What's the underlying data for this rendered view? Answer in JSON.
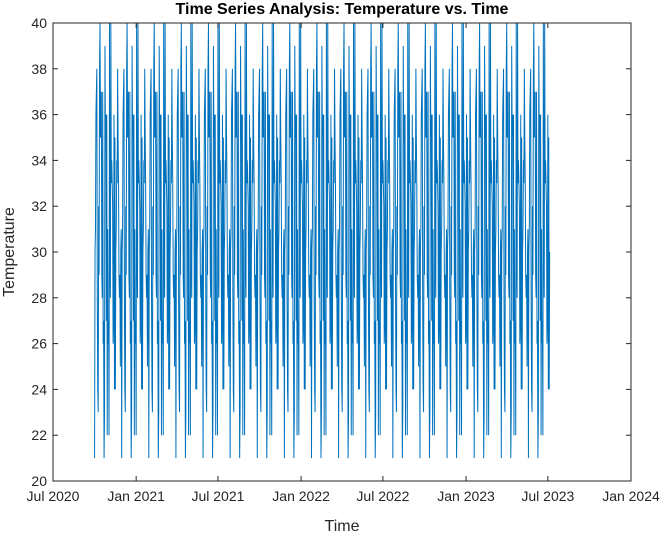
{
  "chart_data": {
    "type": "line",
    "title": "Time Series Analysis: Temperature vs. Time",
    "xlabel": "Time",
    "ylabel": "Temperature",
    "xlim": [
      "2020-07-01",
      "2024-01-01"
    ],
    "ylim": [
      20,
      40
    ],
    "x_ticks": [
      {
        "date": "2020-07-01",
        "label": "Jul 2020"
      },
      {
        "date": "2021-01-01",
        "label": "Jan 2021"
      },
      {
        "date": "2021-07-01",
        "label": "Jul 2021"
      },
      {
        "date": "2022-01-01",
        "label": "Jan 2022"
      },
      {
        "date": "2022-07-01",
        "label": "Jul 2022"
      },
      {
        "date": "2023-01-01",
        "label": "Jan 2023"
      },
      {
        "date": "2023-07-01",
        "label": "Jul 2023"
      },
      {
        "date": "2024-01-01",
        "label": "Jan 2024"
      }
    ],
    "y_ticks": [
      20,
      22,
      24,
      26,
      28,
      30,
      32,
      34,
      36,
      38,
      40
    ],
    "grid": false,
    "series": [
      {
        "start_date": "2020-10-01",
        "end_date": "2023-07-05",
        "frequency": "daily",
        "line_color": "#0072BD",
        "values": [
          21,
          36,
          27,
          32,
          35,
          28,
          37,
          30,
          24,
          36,
          29,
          33,
          40,
          26,
          31,
          35,
          22,
          38,
          29,
          33,
          27,
          36,
          24,
          31,
          40,
          28,
          34,
          21,
          37,
          30,
          26,
          35,
          29,
          33,
          23,
          38,
          31,
          27,
          36,
          25,
          32,
          39,
          28,
          34,
          22,
          37,
          30,
          26,
          35,
          24,
          33,
          40,
          29,
          31,
          27,
          36,
          23,
          38,
          30,
          28
        ]
      }
    ]
  }
}
